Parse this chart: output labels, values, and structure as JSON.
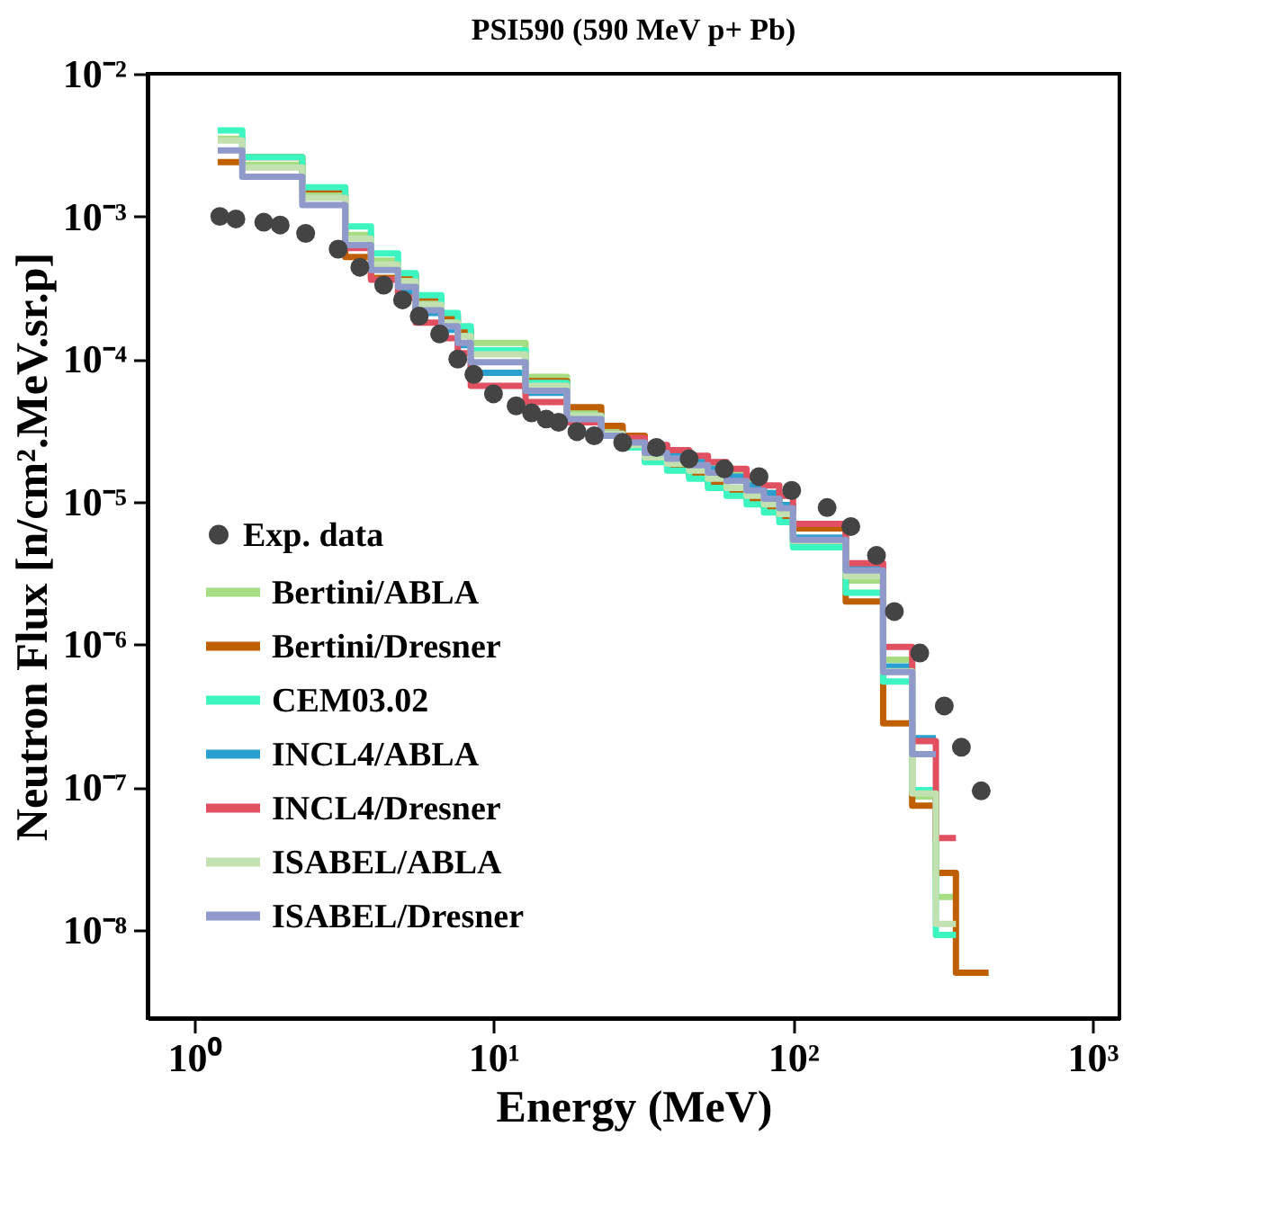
{
  "chart_data": {
    "type": "step",
    "title": "PSI590 (590 MeV p+ Pb)",
    "xlabel": "Energy (MeV)",
    "ylabel": "Neutron Flux [n/cm².MeV.sr.p]",
    "log": "xy",
    "grid": false,
    "legend": "bottom left",
    "line_style": "solid",
    "xlim": [
      0.7,
      1230
    ],
    "ylim": [
      2.4e-09,
      0.01
    ],
    "xticks": [
      {
        "value": 1,
        "label": "10⁰"
      },
      {
        "value": 10,
        "label": "10¹"
      },
      {
        "value": 100,
        "label": "10²"
      },
      {
        "value": 1000,
        "label": "10³"
      }
    ],
    "yticks": [
      {
        "value": 0.01,
        "label": "10⁻²"
      },
      {
        "value": 0.001,
        "label": "10⁻³"
      },
      {
        "value": 0.0001,
        "label": "10⁻⁴"
      },
      {
        "value": 1e-05,
        "label": "10⁻⁵"
      },
      {
        "value": 1e-06,
        "label": "10⁻⁶"
      },
      {
        "value": 1e-07,
        "label": "10⁻⁷"
      },
      {
        "value": 1e-08,
        "label": "10⁻⁸"
      }
    ],
    "series": [
      {
        "name": "Exp. data",
        "type": "scatter",
        "marker": "circle",
        "color": "#444444",
        "x": [
          1.22,
          1.38,
          1.71,
          1.94,
          2.36,
          3.03,
          3.58,
          4.3,
          4.97,
          5.65,
          6.61,
          7.6,
          8.6,
          10,
          11.9,
          13.4,
          15,
          16.5,
          19,
          21.7,
          27,
          35,
          45,
          59,
          77,
          99,
          130,
          156,
          190,
          218,
          265,
          320,
          365,
          425
        ],
        "values": [
          0.001,
          0.00096,
          0.00091,
          0.00087,
          0.00076,
          0.00059,
          0.00044,
          0.00033,
          0.00026,
          0.0002,
          0.00015,
          0.0001,
          7.8e-05,
          5.7e-05,
          4.7e-05,
          4.2e-05,
          3.8e-05,
          3.6e-05,
          3.1e-05,
          2.9e-05,
          2.6e-05,
          2.4e-05,
          2e-05,
          1.7e-05,
          1.5e-05,
          1.2e-05,
          9.1e-06,
          6.7e-06,
          4.2e-06,
          1.7e-06,
          8.7e-07,
          3.7e-07,
          1.9e-07,
          9.4e-08
        ]
      },
      {
        "name": "Bertini/ABLA",
        "color": "#a6dc82",
        "x": [
          1.2,
          1.45,
          2.3,
          3.2,
          3.9,
          4.8,
          5.5,
          6.7,
          7.6,
          8.4,
          12.8,
          17.6,
          22.9,
          27,
          32,
          38,
          45,
          52,
          60,
          70,
          80,
          90,
          100,
          150,
          200,
          250,
          300,
          350
        ],
        "values": [
          0.0035,
          0.0023,
          0.0014,
          0.00074,
          0.00049,
          0.00036,
          0.00025,
          0.00019,
          0.00015,
          0.00013,
          7.5e-05,
          4.2e-05,
          3.2e-05,
          2.75e-05,
          2.4e-05,
          2.15e-05,
          1.95e-05,
          1.75e-05,
          1.55e-05,
          1.35e-05,
          1.15e-05,
          9.5e-06,
          5e-06,
          2.8e-06,
          7.8e-07,
          8.6e-08,
          1.7e-08,
          1.7e-08
        ]
      },
      {
        "name": "Bertini/Dresner",
        "color": "#c05f00",
        "x": [
          1.2,
          1.45,
          2.3,
          3.2,
          3.9,
          4.8,
          5.5,
          6.7,
          7.6,
          8.4,
          12.8,
          17.6,
          22.9,
          27,
          32,
          38,
          45,
          52,
          60,
          70,
          80,
          90,
          100,
          150,
          200,
          250,
          300,
          350,
          400,
          450
        ],
        "values": [
          0.0024,
          0.0026,
          0.00155,
          0.00052,
          0.00037,
          0.00039,
          0.00027,
          0.0002,
          0.00016,
          0.00011,
          7e-05,
          4.6e-05,
          3.4e-05,
          2.9e-05,
          2.1e-05,
          1.75e-05,
          1.55e-05,
          1.35e-05,
          1.2e-05,
          1.05e-05,
          9.2e-06,
          7.9e-06,
          6.5e-06,
          2e-06,
          2.8e-07,
          7.4e-08,
          2.5e-08,
          5e-09,
          5e-09,
          5e-09
        ]
      },
      {
        "name": "CEM03.02",
        "color": "#3cf5c0",
        "x": [
          1.2,
          1.45,
          2.3,
          3.2,
          3.9,
          4.8,
          5.5,
          6.7,
          7.6,
          8.4,
          12.8,
          17.6,
          22.9,
          27,
          32,
          38,
          45,
          52,
          60,
          70,
          80,
          90,
          100,
          150,
          200,
          250,
          300,
          350
        ],
        "values": [
          0.004,
          0.0026,
          0.0016,
          0.00085,
          0.00055,
          0.0004,
          0.00028,
          0.00021,
          0.00017,
          0.000115,
          6.8e-05,
          4e-05,
          3e-05,
          2.4e-05,
          1.9e-05,
          1.65e-05,
          1.45e-05,
          1.25e-05,
          1.1e-05,
          9.6e-06,
          8.4e-06,
          7.2e-06,
          4.8e-06,
          2.3e-06,
          5.5e-07,
          9.5e-08,
          9.2e-09,
          9.2e-09
        ]
      },
      {
        "name": "INCL4/ABLA",
        "color": "#2aa0d0",
        "x": [
          4.8,
          5.5,
          6.7,
          7.6,
          8.4,
          12.8,
          17.6,
          22.9,
          27,
          32,
          38,
          45,
          52,
          60,
          70,
          80,
          90,
          100,
          150,
          200,
          250,
          300
        ],
        "values": [
          0.000295,
          0.00021,
          0.00016,
          0.000125,
          8e-05,
          5.8e-05,
          3.8e-05,
          2.9e-05,
          2.6e-05,
          2.3e-05,
          2.1e-05,
          1.9e-05,
          1.7e-05,
          1.5e-05,
          1.3e-05,
          1.15e-05,
          9.5e-06,
          5.6e-06,
          3.5e-06,
          7e-07,
          2.2e-07,
          2.2e-07
        ]
      },
      {
        "name": "INCL4/Dresner",
        "color": "#e05060",
        "x": [
          3.2,
          3.9,
          4.8,
          5.5,
          6.7,
          7.6,
          8.4,
          12.8,
          17.6,
          22.9,
          27,
          32,
          38,
          45,
          52,
          60,
          70,
          80,
          90,
          100,
          150,
          200,
          250,
          300,
          350
        ],
        "values": [
          0.0006,
          0.00036,
          0.00027,
          0.00018,
          0.00014,
          0.00011,
          6.5e-05,
          5e-05,
          3.6e-05,
          3e-05,
          2.8e-05,
          2.5e-05,
          2.3e-05,
          2.1e-05,
          1.9e-05,
          1.7e-05,
          1.5e-05,
          1.3e-05,
          1.1e-05,
          7e-06,
          3.7e-06,
          9.6e-07,
          2.1e-07,
          4.4e-08,
          4.4e-08
        ]
      },
      {
        "name": "ISABEL/ABLA",
        "color": "#c2e0b0",
        "x": [
          1.2,
          1.45,
          2.3,
          3.2,
          3.9,
          4.8,
          5.5,
          6.7,
          7.6,
          8.4,
          12.8,
          17.6,
          22.9,
          27,
          32,
          38,
          45,
          52,
          60,
          70,
          80,
          90,
          100,
          150,
          200,
          250,
          300,
          350
        ],
        "values": [
          0.0034,
          0.0022,
          0.00135,
          0.0007,
          0.00046,
          0.00035,
          0.00024,
          0.00018,
          0.000145,
          0.000108,
          6.5e-05,
          4e-05,
          3e-05,
          2.5e-05,
          2.05e-05,
          1.85e-05,
          1.65e-05,
          1.45e-05,
          1.25e-05,
          1.1e-05,
          9.6e-06,
          8.2e-06,
          5.3e-06,
          3e-06,
          6.5e-07,
          9e-08,
          1.1e-08,
          1.1e-08
        ]
      },
      {
        "name": "ISABEL/Dresner",
        "color": "#8f9acb",
        "x": [
          1.2,
          1.45,
          2.3,
          3.2,
          3.9,
          4.8,
          5.5,
          6.7,
          7.6,
          8.4,
          12.8,
          17.6,
          22.9,
          27,
          32,
          38,
          45,
          52,
          60,
          70,
          80,
          90,
          100,
          150,
          200,
          250,
          300
        ],
        "values": [
          0.0029,
          0.0019,
          0.0012,
          0.00063,
          0.00042,
          0.00032,
          0.00022,
          0.00017,
          0.00013,
          9.5e-05,
          6e-05,
          3.8e-05,
          2.9e-05,
          2.6e-05,
          2.2e-05,
          2e-05,
          1.8e-05,
          1.6e-05,
          1.4e-05,
          1.2e-05,
          1.05e-05,
          9e-06,
          5.4e-06,
          3.3e-06,
          6.4e-07,
          1.7e-07,
          1.7e-07
        ]
      }
    ]
  }
}
